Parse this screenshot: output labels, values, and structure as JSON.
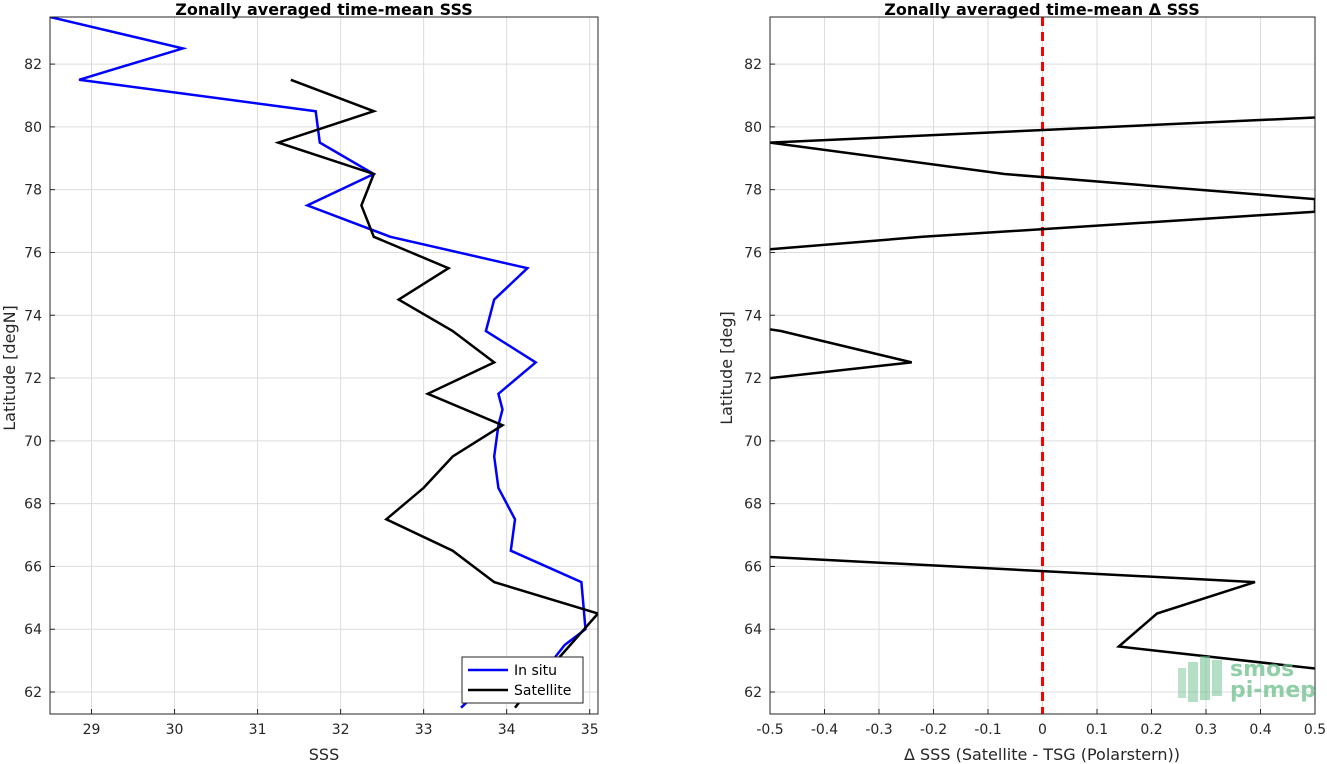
{
  "chart_data": [
    {
      "type": "line",
      "title": "Zonally averaged time-mean SSS",
      "xlabel": "SSS",
      "ylabel": "Latitude [degN]",
      "xlim": [
        28.5,
        35.1
      ],
      "ylim": [
        61.3,
        83.5
      ],
      "xticks": [
        29,
        30,
        31,
        32,
        33,
        34,
        35
      ],
      "yticks": [
        62,
        64,
        66,
        68,
        70,
        72,
        74,
        76,
        78,
        80,
        82
      ],
      "grid": true,
      "legend_position": "bottom-right",
      "series": [
        {
          "name": "In situ",
          "color": "#0000ff",
          "x": [
            33.45,
            33.65,
            34.1,
            34.55,
            34.7,
            34.95,
            34.9,
            34.05,
            34.1,
            33.9,
            33.85,
            33.9,
            33.95,
            33.9,
            34.35,
            33.75,
            33.85,
            34.25,
            32.6,
            31.6,
            32.4,
            31.75,
            31.7,
            28.85,
            30.1,
            28.5
          ],
          "y": [
            61.5,
            62.0,
            62.5,
            63.0,
            63.5,
            64.0,
            65.5,
            66.5,
            67.5,
            68.5,
            69.5,
            70.5,
            71.0,
            71.5,
            72.5,
            73.5,
            74.5,
            75.5,
            76.5,
            77.5,
            78.5,
            79.5,
            80.5,
            81.5,
            82.5,
            83.5
          ]
        },
        {
          "name": "Satellite",
          "color": "#000000",
          "x": [
            34.1,
            34.25,
            34.6,
            35.1,
            33.85,
            33.35,
            32.55,
            33.0,
            33.35,
            33.95,
            33.05,
            33.85,
            33.35,
            32.7,
            33.3,
            32.4,
            32.25,
            32.4,
            31.25,
            32.4,
            31.4
          ],
          "y": [
            61.5,
            62.0,
            63.0,
            64.5,
            65.5,
            66.5,
            67.5,
            68.5,
            69.5,
            70.5,
            71.5,
            72.5,
            73.5,
            74.5,
            75.5,
            76.5,
            77.5,
            78.5,
            79.5,
            80.5,
            81.5
          ]
        }
      ]
    },
    {
      "type": "line",
      "title": "Zonally averaged time-mean Δ SSS",
      "xlabel": "Δ SSS (Satellite - TSG (Polarstern))",
      "ylabel": "Latitude [deg]",
      "xlim": [
        -0.5,
        0.5
      ],
      "ylim": [
        61.3,
        83.5
      ],
      "xticks": [
        -0.5,
        -0.4,
        -0.3,
        -0.2,
        -0.1,
        0,
        0.1,
        0.2,
        0.3,
        0.4,
        0.5
      ],
      "yticks": [
        62,
        64,
        66,
        68,
        70,
        72,
        74,
        76,
        78,
        80,
        82
      ],
      "grid": true,
      "reference_line": {
        "x": 0,
        "color": "#ff0000",
        "style": "dashed"
      },
      "series": [
        {
          "color": "#000000",
          "segments": [
            {
              "x": [
                0.5,
                0.14,
                0.21,
                0.39,
                -0.5
              ],
              "y": [
                62.75,
                63.45,
                64.5,
                65.5,
                66.3
              ]
            },
            {
              "x": [
                -0.5,
                -0.24,
                -0.48,
                -0.5
              ],
              "y": [
                72.0,
                72.5,
                73.5,
                73.55
              ]
            },
            {
              "x": [
                -0.5,
                -0.22,
                0.5,
                0.5,
                -0.07,
                -0.5,
                0.5
              ],
              "y": [
                76.1,
                76.5,
                77.3,
                77.7,
                78.5,
                79.5,
                80.3
              ]
            }
          ]
        }
      ]
    }
  ],
  "logo": {
    "line1": "smos",
    "line2": "pi-mep"
  }
}
